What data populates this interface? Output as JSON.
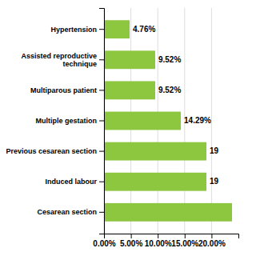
{
  "chart_data": {
    "type": "bar",
    "orientation": "horizontal",
    "categories": [
      "Hypertension",
      "Assisted reproductive\ntechnique",
      "Multiparous patient",
      "Multiple gestation",
      "Previous cesarean section",
      "Induced labour",
      "Cesarean section"
    ],
    "values": [
      4.76,
      9.52,
      9.52,
      14.29,
      19.05,
      19.05,
      23.81
    ],
    "data_labels": true,
    "value_labels": [
      "4.76%",
      "9.52%",
      "9.52%",
      "14.29%",
      "19",
      "19",
      null
    ],
    "color": "#8dc63f",
    "xlim": [
      0,
      25
    ],
    "xticks": [
      {
        "value": 0,
        "label": "0.00%"
      },
      {
        "value": 5,
        "label": "5.00%"
      },
      {
        "value": 10,
        "label": "10.00%"
      },
      {
        "value": 15,
        "label": "15.00%"
      },
      {
        "value": 20,
        "label": "20.00%"
      }
    ],
    "grid": true
  }
}
